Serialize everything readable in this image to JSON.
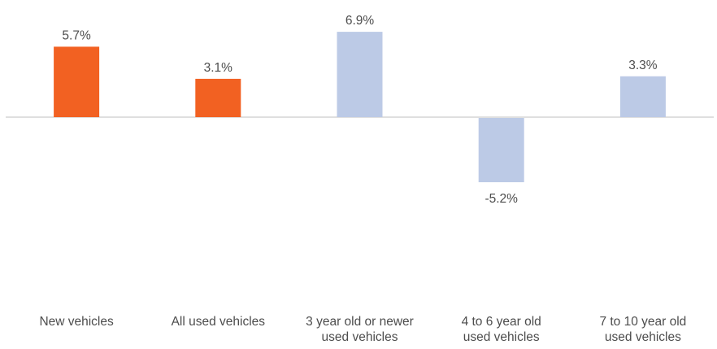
{
  "chart_data": {
    "type": "bar",
    "categories": [
      "New vehicles",
      "All used vehicles",
      "3 year old or newer\nused vehicles",
      "4 to 6 year old\nused vehicles",
      "7 to 10 year old\nused vehicles"
    ],
    "values": [
      5.7,
      3.1,
      6.9,
      -5.2,
      3.3
    ],
    "data_labels": [
      "5.7%",
      "3.1%",
      "6.9%",
      "-5.2%",
      "3.3%"
    ],
    "bar_colors": [
      "#f26122",
      "#f26122",
      "#bccae6",
      "#bccae6",
      "#bccae6"
    ],
    "title": "",
    "xlabel": "",
    "ylabel": "",
    "ylim": [
      -5.2,
      6.9
    ],
    "grid": false,
    "legend": "none",
    "axis_color": "#bfbfbf",
    "label_color": "#4d4d4d"
  }
}
